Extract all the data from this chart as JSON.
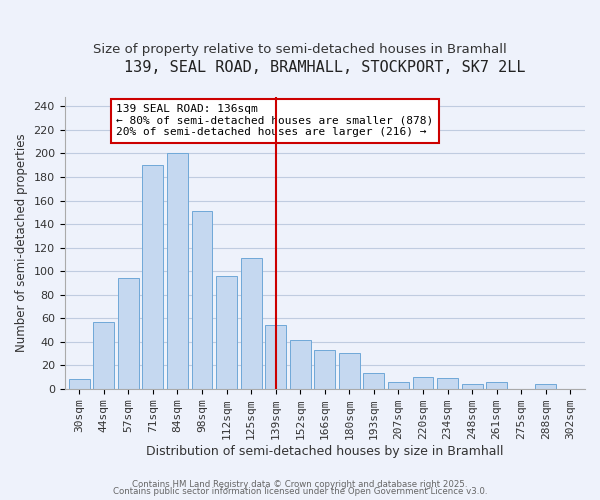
{
  "title": "139, SEAL ROAD, BRAMHALL, STOCKPORT, SK7 2LL",
  "subtitle": "Size of property relative to semi-detached houses in Bramhall",
  "xlabel": "Distribution of semi-detached houses by size in Bramhall",
  "ylabel": "Number of semi-detached properties",
  "categories": [
    "30sqm",
    "44sqm",
    "57sqm",
    "71sqm",
    "84sqm",
    "98sqm",
    "112sqm",
    "125sqm",
    "139sqm",
    "152sqm",
    "166sqm",
    "180sqm",
    "193sqm",
    "207sqm",
    "220sqm",
    "234sqm",
    "248sqm",
    "261sqm",
    "275sqm",
    "288sqm",
    "302sqm"
  ],
  "values": [
    8,
    57,
    94,
    190,
    200,
    151,
    96,
    111,
    54,
    41,
    33,
    30,
    13,
    6,
    10,
    9,
    4,
    6,
    0,
    4,
    0
  ],
  "bar_color": "#c5d8f0",
  "bar_edge_color": "#6fa8d8",
  "background_color": "#eef2fb",
  "grid_color": "#c0cce0",
  "marker_index": 8,
  "marker_color": "#cc0000",
  "marker_label": "139 SEAL ROAD: 136sqm",
  "annotation_line1": "← 80% of semi-detached houses are smaller (878)",
  "annotation_line2": "20% of semi-detached houses are larger (216) →",
  "box_edge_color": "#cc0000",
  "ylim": [
    0,
    248
  ],
  "yticks": [
    0,
    20,
    40,
    60,
    80,
    100,
    120,
    140,
    160,
    180,
    200,
    220,
    240
  ],
  "title_fontsize": 11,
  "subtitle_fontsize": 9.5,
  "xlabel_fontsize": 9,
  "ylabel_fontsize": 8.5,
  "tick_fontsize": 8,
  "annot_fontsize": 8,
  "footnote1": "Contains HM Land Registry data © Crown copyright and database right 2025.",
  "footnote2": "Contains public sector information licensed under the Open Government Licence v3.0."
}
